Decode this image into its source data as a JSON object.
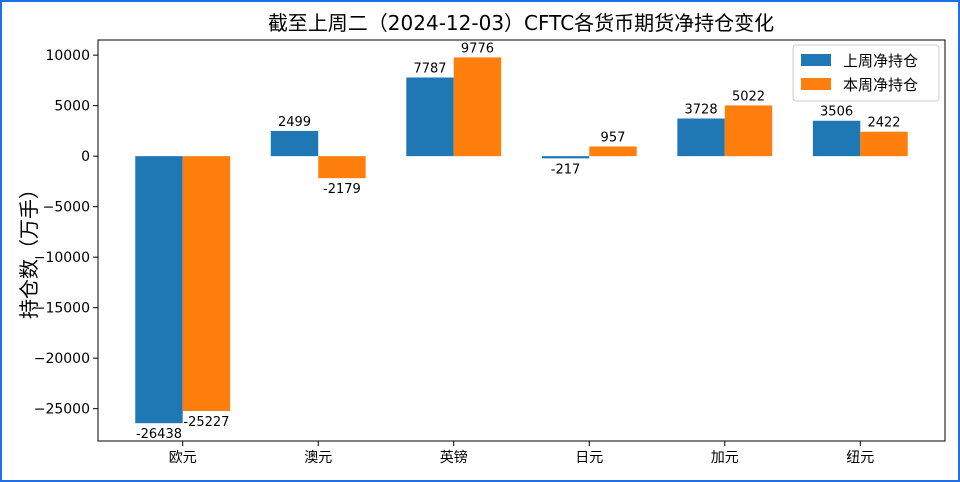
{
  "chart_data": {
    "type": "bar",
    "title": "截至上周二（2024-12-03）CFTC各货币期货净持仓变化",
    "ylabel": "持仓数（万手）",
    "xlabel": "",
    "categories": [
      "欧元",
      "澳元",
      "英镑",
      "日元",
      "加元",
      "纽元"
    ],
    "series": [
      {
        "name": "上周净持仓",
        "color": "#1f77b4",
        "values": [
          -26438,
          2499,
          7787,
          -217,
          3728,
          3506
        ]
      },
      {
        "name": "本周净持仓",
        "color": "#ff7f0e",
        "values": [
          -25227,
          -2179,
          9776,
          957,
          5022,
          2422
        ]
      }
    ],
    "ylim": [
      -28200,
      11500
    ],
    "yticks": [
      10000,
      5000,
      0,
      -5000,
      -10000,
      -15000,
      -20000,
      -25000
    ],
    "legend_position": "top-right",
    "grid": false
  }
}
